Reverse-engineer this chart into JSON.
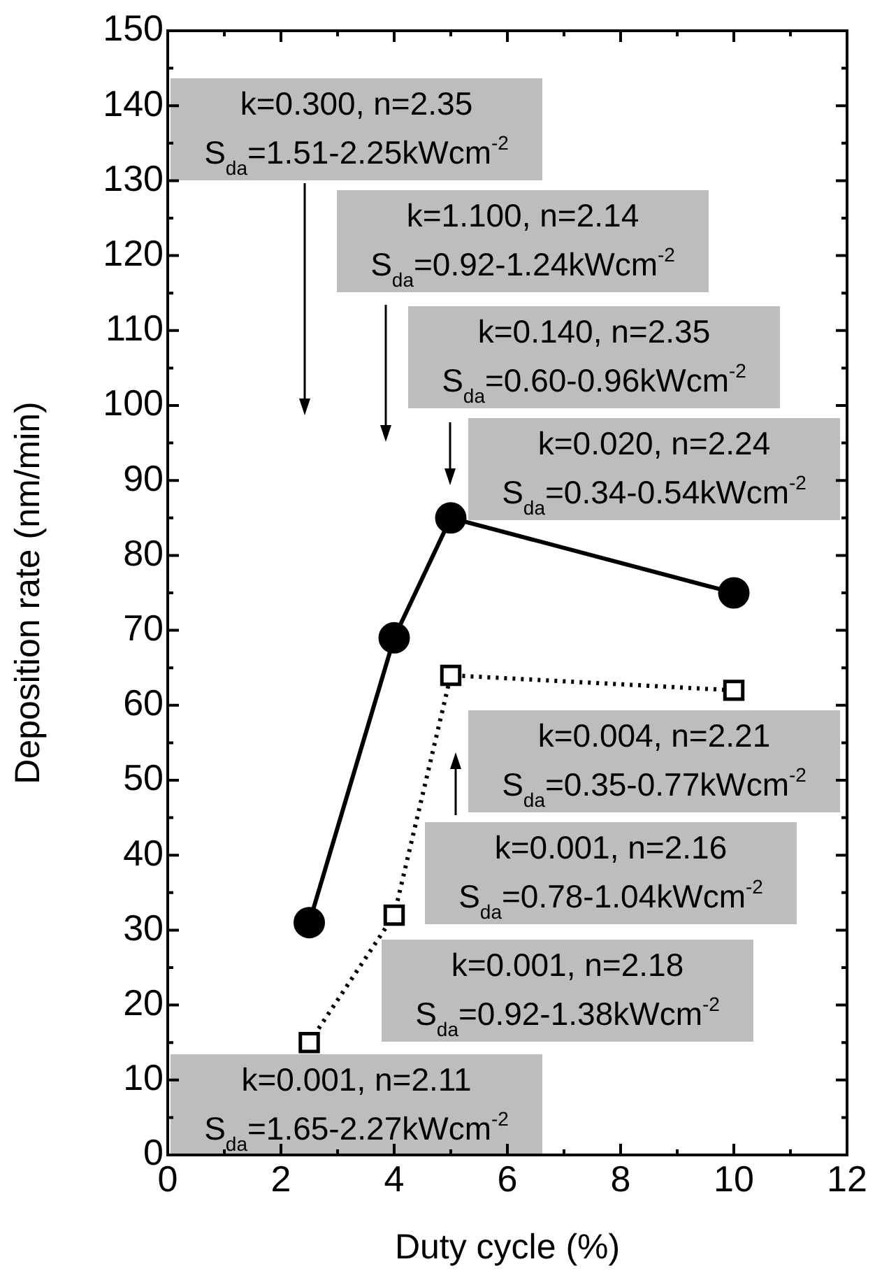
{
  "chart_data": {
    "type": "line",
    "xlabel": "Duty cycle (%)",
    "ylabel": "Deposition rate (nm/min)",
    "x": [
      2.5,
      4,
      5,
      10
    ],
    "series": [
      {
        "color": "#000000",
        "values": [
          31,
          69,
          85,
          75
        ],
        "marker": "circle",
        "line_style": "solid"
      },
      {
        "color": "#000000",
        "values": [
          15,
          32,
          64,
          62
        ],
        "marker": "square",
        "line_style": "dotted"
      }
    ],
    "xlim": [
      0,
      12
    ],
    "xticks": [
      0,
      2,
      4,
      6,
      8,
      10,
      12
    ],
    "ylim": [
      0,
      150
    ],
    "yticks": [
      0,
      10,
      20,
      30,
      40,
      50,
      60,
      70,
      80,
      90,
      100,
      110,
      120,
      130,
      140,
      150
    ],
    "grid": false,
    "legend": false,
    "annotations": [
      "k=0.300, n=2.35\nS$_{da}$=1.51-2.25kWcm$^{-2}$",
      "k=1.100, n=2.14\nS$_{da}$=0.92-1.24kWcm$^{-2}$",
      "k=0.140, n=2.35\nS$_{da}$=0.60-0.96kWcm$^{-2}$",
      "k=0.020, n=2.24\nS$_{da}$=0.34-0.54kWcm$^{-2}$",
      "k=0.004, n=2.21\nS$_{da}$=0.35-0.77kWcm$^{-2}$",
      "k=0.001, n=2.16\nS$_{da}$=0.78-1.04kWcm$^{-2}$",
      "k=0.001, n=2.18\nS$_{da}$=0.92-1.38kWcm$^{-2}$",
      "k=0.001, n=2.11\nS$_{da}$=1.65-2.27kWcm$^{-2}$"
    ]
  }
}
